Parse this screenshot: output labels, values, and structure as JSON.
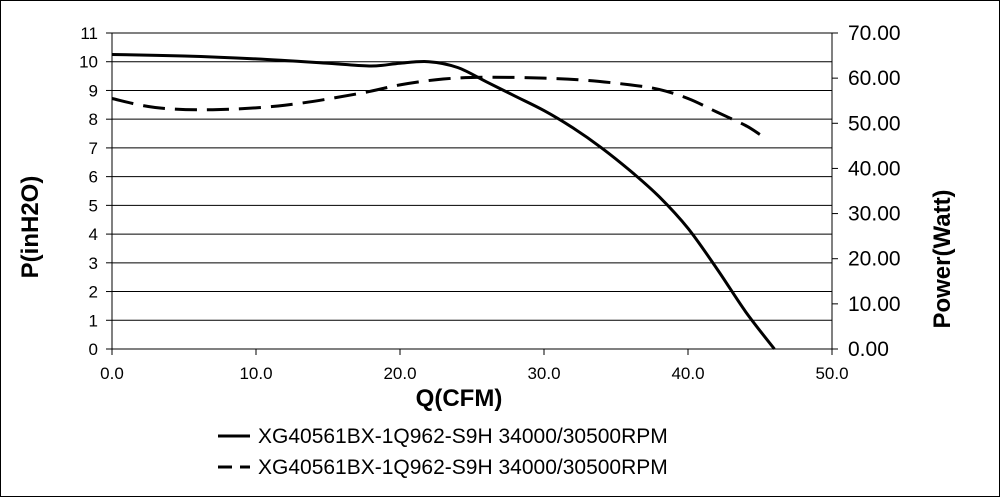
{
  "chart_data": {
    "type": "line",
    "xlabel": "Q(CFM)",
    "ylabel_left": "P(inH2O)",
    "ylabel_right": "Power(Watt)",
    "xlim": [
      0,
      50
    ],
    "ylim_left": [
      0,
      11
    ],
    "ylim_right": [
      0,
      70
    ],
    "x_ticks": [
      "0.0",
      "10.0",
      "20.0",
      "30.0",
      "40.0",
      "50.0"
    ],
    "y_left_ticks": [
      "0",
      "1",
      "2",
      "3",
      "4",
      "5",
      "6",
      "7",
      "8",
      "9",
      "10",
      "11"
    ],
    "y_right_ticks": [
      "0.00",
      "10.00",
      "20.00",
      "30.00",
      "40.00",
      "50.00",
      "60.00",
      "70.00"
    ],
    "grid": "horizontal",
    "legend_position": "bottom",
    "series": [
      {
        "name": "XG40561BX-1Q962-S9H 34000/30500RPM",
        "axis": "left",
        "style": "solid",
        "x": [
          0,
          5,
          10,
          15,
          18,
          20,
          22,
          24,
          26,
          28,
          30,
          32,
          34,
          36,
          38,
          40,
          42,
          44,
          46
        ],
        "y": [
          10.25,
          10.2,
          10.1,
          9.95,
          9.85,
          9.95,
          10.0,
          9.8,
          9.3,
          8.8,
          8.3,
          7.7,
          7.0,
          6.2,
          5.3,
          4.2,
          2.8,
          1.3,
          0
        ]
      },
      {
        "name": "XG40561BX-1Q962-S9H 34000/30500RPM",
        "axis": "right",
        "style": "dashed",
        "x": [
          0,
          3,
          7,
          12,
          17,
          20,
          23,
          26,
          30,
          33,
          36,
          38,
          40,
          42,
          44,
          45
        ],
        "y": [
          55.5,
          53.5,
          53.0,
          54.0,
          56.5,
          58.5,
          59.8,
          60.2,
          60.0,
          59.5,
          58.5,
          57.5,
          55.5,
          52.5,
          49.5,
          47.5
        ]
      }
    ]
  }
}
